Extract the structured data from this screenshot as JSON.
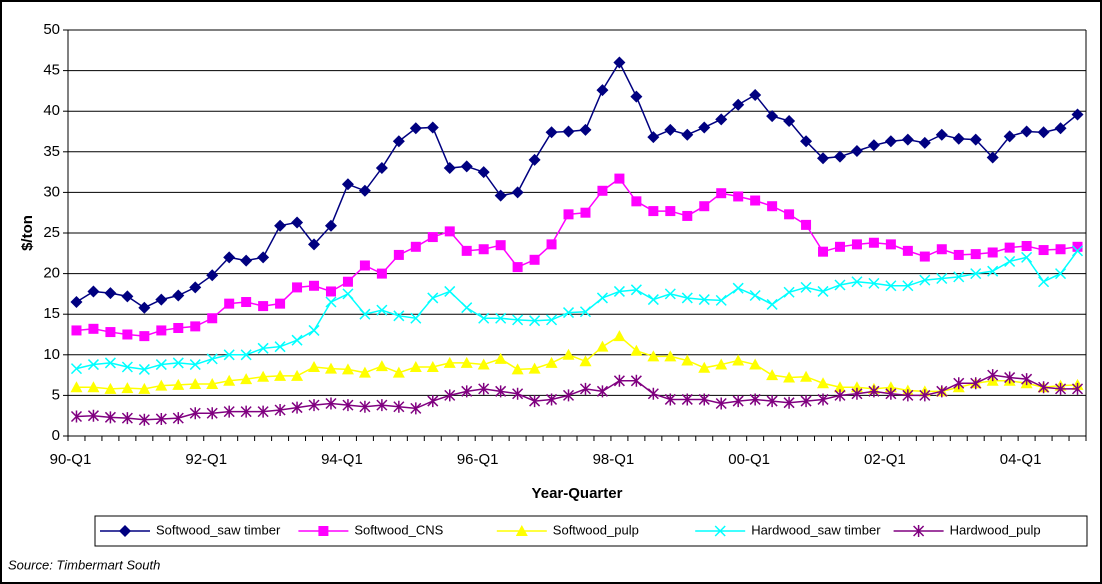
{
  "chart_data": {
    "type": "line",
    "ylabel": "$/ton",
    "xlabel": "Year-Quarter",
    "source": "Source: Timbermart South",
    "categories": [
      "90-Q1",
      null,
      null,
      null,
      null,
      null,
      null,
      null,
      "92-Q1",
      null,
      null,
      null,
      null,
      null,
      null,
      null,
      "94-Q1",
      null,
      null,
      null,
      null,
      null,
      null,
      null,
      "96-Q1",
      null,
      null,
      null,
      null,
      null,
      null,
      null,
      "98-Q1",
      null,
      null,
      null,
      null,
      null,
      null,
      null,
      "00-Q1",
      null,
      null,
      null,
      null,
      null,
      null,
      null,
      "02-Q1",
      null,
      null,
      null,
      null,
      null,
      null,
      null,
      "04-Q1",
      null,
      null,
      null
    ],
    "ylim": [
      0,
      50
    ],
    "yticks": [
      0,
      5,
      10,
      15,
      20,
      25,
      30,
      35,
      40,
      45,
      50
    ],
    "grid": true,
    "legend": "bottom",
    "series": [
      {
        "name": "Softwood_saw timber",
        "color": "#000080",
        "marker": "diamond",
        "values": [
          16.5,
          17.8,
          17.6,
          17.2,
          15.8,
          16.8,
          17.3,
          18.3,
          19.8,
          22,
          21.6,
          22,
          25.9,
          26.3,
          23.6,
          25.9,
          31,
          30.2,
          33,
          36.3,
          37.9,
          38,
          33,
          33.2,
          32.5,
          29.6,
          30,
          34,
          37.4,
          37.5,
          37.7,
          42.6,
          46,
          41.8,
          36.8,
          37.7,
          37.1,
          38,
          39,
          40.8,
          42,
          39.4,
          38.8,
          36.3,
          34.2,
          34.4,
          35.1,
          35.8,
          36.3,
          36.5,
          36.1,
          37.1,
          36.6,
          36.5,
          34.3,
          36.9,
          37.5,
          37.4,
          37.9,
          39.6
        ]
      },
      {
        "name": "Softwood_CNS",
        "color": "#ff00ff",
        "marker": "square",
        "values": [
          13,
          13.2,
          12.8,
          12.5,
          12.3,
          13,
          13.3,
          13.5,
          14.5,
          16.3,
          16.5,
          16,
          16.3,
          18.3,
          18.5,
          17.8,
          19,
          21,
          20,
          22.3,
          23.3,
          24.5,
          25.2,
          22.8,
          23,
          23.5,
          20.8,
          21.7,
          23.6,
          27.3,
          27.5,
          30.2,
          31.7,
          28.9,
          27.7,
          27.7,
          27.1,
          28.3,
          29.9,
          29.5,
          29,
          28.3,
          27.3,
          26,
          22.7,
          23.3,
          23.6,
          23.8,
          23.6,
          22.8,
          22.1,
          23,
          22.3,
          22.4,
          22.6,
          23.2,
          23.4,
          22.9,
          23,
          23.3
        ]
      },
      {
        "name": "Softwood_pulp",
        "color": "#ffff00",
        "marker": "triangle",
        "values": [
          6,
          6,
          5.8,
          5.9,
          5.8,
          6.2,
          6.3,
          6.4,
          6.4,
          6.8,
          7,
          7.3,
          7.4,
          7.4,
          8.5,
          8.3,
          8.2,
          7.8,
          8.6,
          7.8,
          8.5,
          8.5,
          9,
          9,
          8.8,
          9.5,
          8.2,
          8.3,
          9,
          10,
          9.2,
          11,
          12.3,
          10.5,
          9.8,
          9.8,
          9.3,
          8.4,
          8.8,
          9.3,
          8.8,
          7.5,
          7.2,
          7.3,
          6.5,
          6,
          6,
          5.8,
          6,
          5.6,
          5.5,
          5.5,
          6,
          6.5,
          6.8,
          6.8,
          6.5,
          6,
          6.2,
          6.3
        ]
      },
      {
        "name": "Hardwood_saw timber",
        "color": "#00ffff",
        "marker": "x",
        "values": [
          8.3,
          8.8,
          9,
          8.5,
          8.2,
          8.8,
          9,
          8.8,
          9.5,
          10,
          10,
          10.8,
          11,
          11.8,
          13,
          16.5,
          17.5,
          15,
          15.5,
          14.8,
          14.5,
          17,
          17.8,
          15.8,
          14.5,
          14.5,
          14.3,
          14.2,
          14.3,
          15.2,
          15.3,
          17,
          17.8,
          18,
          16.8,
          17.5,
          17,
          16.8,
          16.7,
          18.2,
          17.3,
          16.2,
          17.7,
          18.3,
          17.8,
          18.6,
          19,
          18.8,
          18.5,
          18.5,
          19.2,
          19.4,
          19.6,
          20,
          20.3,
          21.5,
          22,
          19,
          20,
          22.8
        ]
      },
      {
        "name": "Hardwood_pulp",
        "color": "#800080",
        "marker": "star",
        "values": [
          2.4,
          2.5,
          2.3,
          2.2,
          2,
          2.1,
          2.2,
          2.8,
          2.8,
          3,
          3,
          3,
          3.2,
          3.5,
          3.8,
          4,
          3.8,
          3.6,
          3.8,
          3.6,
          3.4,
          4.3,
          5,
          5.5,
          5.8,
          5.5,
          5.2,
          4.3,
          4.5,
          5,
          5.8,
          5.5,
          6.8,
          6.8,
          5.2,
          4.5,
          4.5,
          4.5,
          4,
          4.3,
          4.5,
          4.3,
          4.1,
          4.3,
          4.5,
          5,
          5.2,
          5.5,
          5.2,
          5,
          5,
          5.5,
          6.5,
          6.5,
          7.5,
          7.2,
          7,
          6,
          5.8,
          5.8
        ]
      }
    ]
  }
}
